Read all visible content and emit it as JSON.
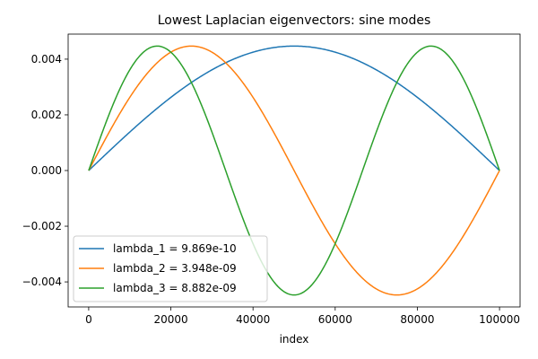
{
  "chart_data": {
    "type": "line",
    "title": "Lowest Laplacian eigenvectors: sine modes",
    "xlabel": "index",
    "ylabel": "",
    "xlim": [
      -5000,
      105000
    ],
    "ylim": [
      -0.0049,
      0.0049
    ],
    "xticks": [
      0,
      20000,
      40000,
      60000,
      80000,
      100000
    ],
    "xtick_labels": [
      "0",
      "20000",
      "40000",
      "60000",
      "80000",
      "100000"
    ],
    "yticks": [
      -0.004,
      -0.002,
      0.0,
      0.002,
      0.004
    ],
    "ytick_labels": [
      "−0.004",
      "−0.002",
      "0.000",
      "0.002",
      "0.004"
    ],
    "grid": false,
    "legend_position": "lower-left",
    "x_range": [
      0,
      100000
    ],
    "amplitude": 0.00447,
    "series": [
      {
        "name": "lambda_1 = 9.869e-10",
        "mode": 1,
        "color": "#1f77b4"
      },
      {
        "name": "lambda_2 = 3.948e-09",
        "mode": 2,
        "color": "#ff7f0e"
      },
      {
        "name": "lambda_3 = 8.882e-09",
        "mode": 3,
        "color": "#2ca02c"
      }
    ]
  }
}
